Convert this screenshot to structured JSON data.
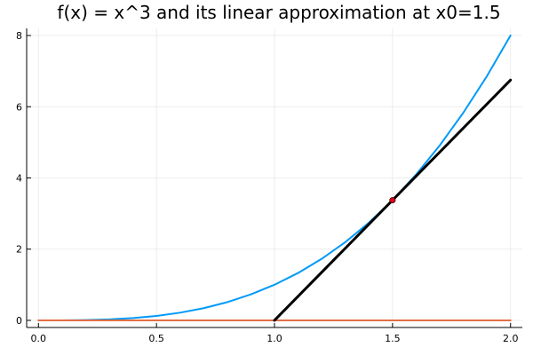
{
  "chart_data": {
    "type": "line",
    "title": "f(x) = x^3 and its linear approximation at x0=1.5",
    "xlabel": "",
    "ylabel": "",
    "xlim": [
      -0.05,
      2.05
    ],
    "ylim": [
      -0.2,
      8.2
    ],
    "x_ticks": [
      0.0,
      0.5,
      1.0,
      1.5,
      2.0
    ],
    "x_tick_labels": [
      "0.0",
      "0.5",
      "1.0",
      "1.5",
      "2.0"
    ],
    "y_ticks": [
      0,
      2,
      4,
      6,
      8
    ],
    "y_tick_labels": [
      "0",
      "2",
      "4",
      "6",
      "8"
    ],
    "grid": true,
    "legend": "none",
    "series": [
      {
        "color": "#009AF9",
        "x": [
          0.0,
          0.1,
          0.2,
          0.3,
          0.4,
          0.5,
          0.6,
          0.7,
          0.8,
          0.9,
          1.0,
          1.1,
          1.2,
          1.3,
          1.4,
          1.5,
          1.6,
          1.7,
          1.8,
          1.9,
          2.0
        ],
        "y": [
          0.0,
          0.001,
          0.008,
          0.027,
          0.064,
          0.125,
          0.216,
          0.343,
          0.512,
          0.729,
          1.0,
          1.331,
          1.728,
          2.197,
          2.744,
          3.375,
          4.096,
          4.913,
          5.832,
          6.859,
          8.0
        ]
      },
      {
        "color": "#E26F46",
        "x": [
          0.0,
          2.0
        ],
        "y": [
          0.0,
          0.0
        ]
      },
      {
        "color": "#000000",
        "x": [
          1.0,
          2.0
        ],
        "y": [
          0.0,
          6.75
        ]
      }
    ],
    "points": [
      {
        "x": 1.5,
        "y": 3.375,
        "color": "#E0001A"
      }
    ]
  }
}
